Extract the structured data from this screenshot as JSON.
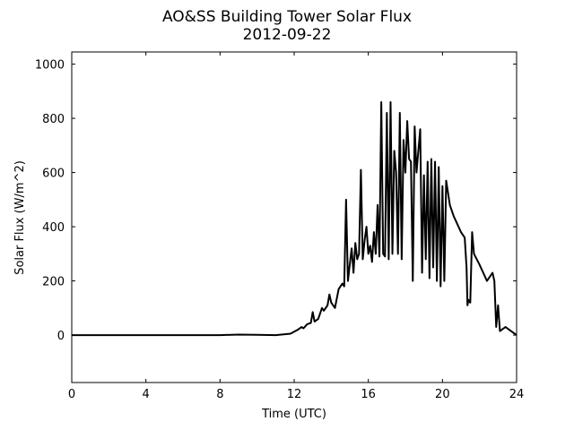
{
  "chart_data": {
    "type": "line",
    "title": "AO&SS Building Tower Solar Flux",
    "subtitle": "2012-09-22",
    "xlabel": "Time (UTC)",
    "ylabel": "Solar Flux (W/m^2)",
    "xlim": [
      0,
      24
    ],
    "xticks": [
      0,
      4,
      8,
      12,
      16,
      20,
      24
    ],
    "ylim": [
      -175,
      1045
    ],
    "yticks": [
      0,
      200,
      400,
      600,
      800,
      1000
    ],
    "series": [
      {
        "color": "#000000",
        "x": [
          0,
          2,
          4,
          6,
          8,
          9,
          10,
          11,
          11.8,
          12.2,
          12.4,
          12.5,
          12.7,
          12.9,
          13.0,
          13.1,
          13.3,
          13.5,
          13.6,
          13.8,
          13.9,
          14.0,
          14.2,
          14.4,
          14.6,
          14.7,
          14.8,
          14.9,
          15.0,
          15.1,
          15.2,
          15.3,
          15.4,
          15.5,
          15.6,
          15.7,
          15.8,
          15.9,
          16.0,
          16.1,
          16.2,
          16.3,
          16.4,
          16.5,
          16.6,
          16.7,
          16.8,
          16.9,
          17.0,
          17.1,
          17.2,
          17.3,
          17.4,
          17.5,
          17.6,
          17.7,
          17.8,
          17.9,
          18.0,
          18.1,
          18.2,
          18.3,
          18.4,
          18.5,
          18.6,
          18.7,
          18.8,
          18.9,
          19.0,
          19.1,
          19.2,
          19.3,
          19.4,
          19.5,
          19.6,
          19.7,
          19.8,
          19.9,
          20.0,
          20.1,
          20.2,
          20.4,
          20.6,
          20.8,
          21.0,
          21.2,
          21.3,
          21.35,
          21.4,
          21.5,
          21.6,
          21.7,
          22.0,
          22.2,
          22.4,
          22.6,
          22.7,
          22.8,
          22.9,
          23.0,
          23.1,
          23.2,
          23.4,
          23.6,
          23.8,
          24
        ],
        "values": [
          0,
          0,
          0,
          0,
          0,
          2,
          1,
          0,
          5,
          20,
          30,
          25,
          40,
          45,
          85,
          50,
          60,
          100,
          90,
          110,
          150,
          120,
          100,
          170,
          190,
          180,
          500,
          200,
          260,
          320,
          230,
          340,
          280,
          300,
          610,
          280,
          350,
          400,
          300,
          330,
          270,
          380,
          300,
          480,
          290,
          860,
          300,
          290,
          820,
          280,
          860,
          300,
          680,
          600,
          300,
          820,
          280,
          720,
          600,
          790,
          650,
          640,
          200,
          770,
          600,
          680,
          760,
          230,
          590,
          280,
          640,
          210,
          650,
          250,
          640,
          200,
          620,
          180,
          550,
          200,
          570,
          480,
          440,
          410,
          380,
          360,
          250,
          110,
          130,
          120,
          380,
          300,
          260,
          230,
          200,
          220,
          230,
          200,
          30,
          110,
          15,
          20,
          30,
          20,
          10,
          0
        ]
      }
    ]
  }
}
